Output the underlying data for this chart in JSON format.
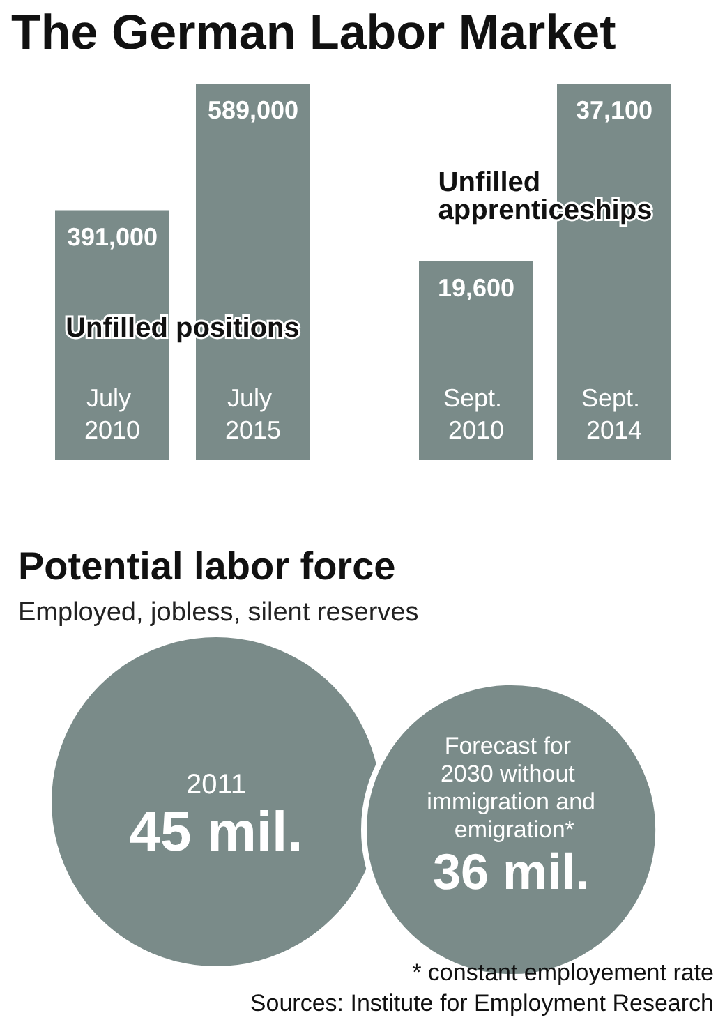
{
  "chart_data": [
    {
      "type": "bar",
      "title": "The German Labor Market",
      "categories": [
        "July 2010",
        "July 2015"
      ],
      "values": [
        391000,
        589000
      ],
      "value_labels": [
        "391,000",
        "589,000"
      ],
      "color": "#7a8b89",
      "annotations": [
        "Unfilled positions"
      ]
    },
    {
      "type": "bar",
      "categories": [
        "Sept. 2010",
        "Sept. 2014"
      ],
      "values": [
        19600,
        37100
      ],
      "value_labels": [
        "19,600",
        "37,100"
      ],
      "color": "#7a8b89",
      "annotations": [
        "Unfilled apprenticeships"
      ]
    },
    {
      "type": "other",
      "title": "Potential labor force",
      "subtitle": "Employed, jobless, silent reserves",
      "categories": [
        "2011",
        "Forecast for 2030 without immigration and emigration*"
      ],
      "values": [
        45,
        36
      ],
      "value_labels": [
        "45 mil.",
        "36 mil."
      ],
      "colors": [
        "#7a8b89",
        "#7a8b89"
      ],
      "annotations": [
        "* constant employement rate",
        "Sources: Institute for Employment Research"
      ]
    }
  ]
}
